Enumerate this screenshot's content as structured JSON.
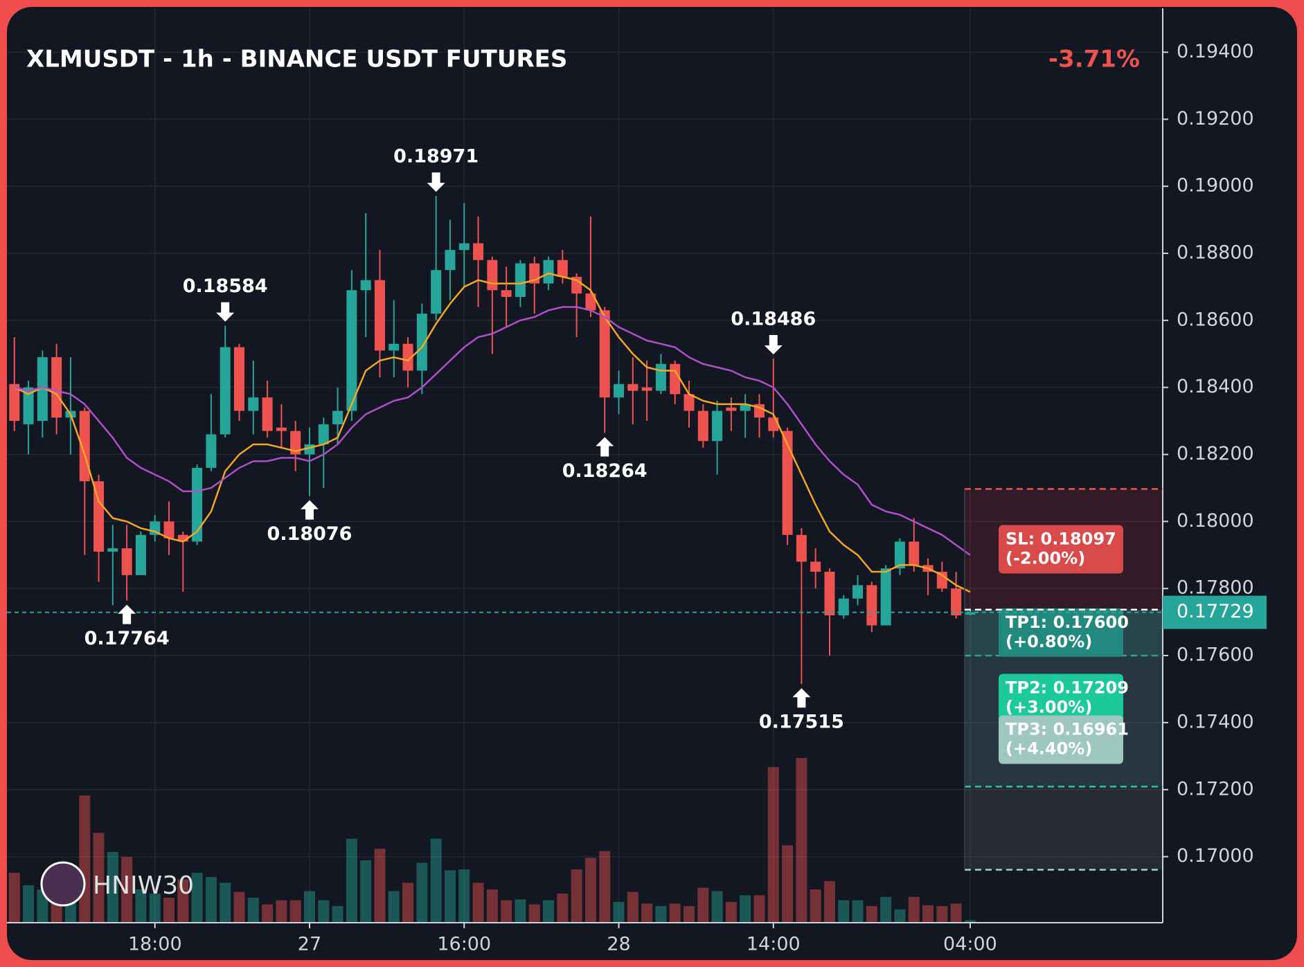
{
  "chart_data": {
    "type": "candlestick",
    "title": "XLMUSDT - 1h - BINANCE USDT FUTURES",
    "change": "-3.71%",
    "author": "HNIW30",
    "up_color": "#26a69a",
    "down_color": "#ef5350",
    "grid": true,
    "xlim": [
      -0.53,
      81.7
    ],
    "ylim": [
      0.16803,
      0.19531
    ],
    "xticks": [
      {
        "value": 10,
        "label": "18:00"
      },
      {
        "value": 21,
        "label": "27"
      },
      {
        "value": 32,
        "label": "16:00"
      },
      {
        "value": 43,
        "label": "28"
      },
      {
        "value": 54,
        "label": "14:00"
      },
      {
        "value": 68,
        "label": "04:00"
      }
    ],
    "yticks": [
      {
        "value": 0.194,
        "label": "0.19400"
      },
      {
        "value": 0.192,
        "label": "0.19200"
      },
      {
        "value": 0.19,
        "label": "0.19000"
      },
      {
        "value": 0.188,
        "label": "0.18800"
      },
      {
        "value": 0.186,
        "label": "0.18600"
      },
      {
        "value": 0.184,
        "label": "0.18400"
      },
      {
        "value": 0.182,
        "label": "0.18200"
      },
      {
        "value": 0.18,
        "label": "0.18000"
      },
      {
        "value": 0.178,
        "label": "0.17800"
      },
      {
        "value": 0.176,
        "label": "0.17600"
      },
      {
        "value": 0.174,
        "label": "0.17400"
      },
      {
        "value": 0.172,
        "label": "0.17200"
      },
      {
        "value": 0.17,
        "label": "0.17000"
      }
    ],
    "open": [
      0.1841,
      0.1829,
      0.183,
      0.1849,
      0.1831,
      0.1833,
      0.1812,
      0.1791,
      0.1792,
      0.1784,
      0.1796,
      0.18,
      0.1796,
      0.1794,
      0.1816,
      0.1826,
      0.1852,
      0.1833,
      0.1837,
      0.1828,
      0.1827,
      0.182,
      0.1823,
      0.1829,
      0.1833,
      0.1869,
      0.1872,
      0.1851,
      0.1853,
      0.1845,
      0.1862,
      0.1875,
      0.1881,
      0.1883,
      0.1878,
      0.1869,
      0.1867,
      0.1877,
      0.1871,
      0.1878,
      0.1873,
      0.1868,
      0.1863,
      0.1837,
      0.1841,
      0.184,
      0.1839,
      0.1847,
      0.1838,
      0.1833,
      0.1824,
      0.1834,
      0.1833,
      0.1835,
      0.1831,
      0.1827,
      0.1796,
      0.1788,
      0.1785,
      0.1772,
      0.1777,
      0.1781,
      0.1769,
      0.1786,
      0.1794,
      0.1787,
      0.1785,
      0.178,
      0.17722
    ],
    "high": [
      0.1855,
      0.1842,
      0.1851,
      0.1853,
      0.1849,
      0.1834,
      0.1814,
      0.1799,
      0.1799,
      0.1797,
      0.1802,
      0.1806,
      0.1797,
      0.1817,
      0.1838,
      0.18584,
      0.1853,
      0.1848,
      0.1842,
      0.1835,
      0.183,
      0.1828,
      0.1831,
      0.184,
      0.1875,
      0.1892,
      0.1881,
      0.1866,
      0.1855,
      0.1865,
      0.18971,
      0.189,
      0.1895,
      0.1891,
      0.1879,
      0.1876,
      0.1878,
      0.1879,
      0.1879,
      0.1881,
      0.1874,
      0.1891,
      0.1864,
      0.1845,
      0.1849,
      0.1848,
      0.185,
      0.1848,
      0.1842,
      0.1835,
      0.1836,
      0.1837,
      0.1838,
      0.1838,
      0.18486,
      0.1828,
      0.1798,
      0.1792,
      0.1786,
      0.1778,
      0.1784,
      0.1782,
      0.1787,
      0.1795,
      0.1801,
      0.1789,
      0.1788,
      0.1785,
      0.1774
    ],
    "low": [
      0.1827,
      0.182,
      0.1825,
      0.1826,
      0.182,
      0.179,
      0.1782,
      0.1775,
      0.17764,
      0.1784,
      0.1794,
      0.179,
      0.1779,
      0.1793,
      0.1815,
      0.1825,
      0.183,
      0.1826,
      0.1825,
      0.1822,
      0.1815,
      0.18076,
      0.181,
      0.1823,
      0.183,
      0.1855,
      0.1843,
      0.1843,
      0.184,
      0.1838,
      0.186,
      0.1866,
      0.187,
      0.1864,
      0.185,
      0.1858,
      0.1864,
      0.1862,
      0.1869,
      0.1871,
      0.1855,
      0.1861,
      0.18264,
      0.1832,
      0.1829,
      0.183,
      0.1838,
      0.1835,
      0.1828,
      0.1822,
      0.1814,
      0.1827,
      0.1825,
      0.1825,
      0.1825,
      0.1793,
      0.17515,
      0.178,
      0.176,
      0.1771,
      0.1775,
      0.1767,
      0.1769,
      0.1784,
      0.1785,
      0.1778,
      0.1779,
      0.1771,
      0.1772
    ],
    "close": [
      0.183,
      0.184,
      0.1849,
      0.1831,
      0.1833,
      0.1812,
      0.1791,
      0.1792,
      0.1784,
      0.1796,
      0.18,
      0.1795,
      0.1794,
      0.1816,
      0.1826,
      0.1852,
      0.1833,
      0.1837,
      0.1827,
      0.1827,
      0.182,
      0.1823,
      0.1829,
      0.1833,
      0.1869,
      0.1872,
      0.1851,
      0.1853,
      0.1845,
      0.1862,
      0.1875,
      0.1881,
      0.1883,
      0.1878,
      0.1869,
      0.1867,
      0.1877,
      0.1871,
      0.1878,
      0.1873,
      0.1868,
      0.1863,
      0.1837,
      0.1841,
      0.1839,
      0.1839,
      0.1847,
      0.1838,
      0.1833,
      0.1824,
      0.1833,
      0.1833,
      0.1835,
      0.1831,
      0.1827,
      0.1796,
      0.1788,
      0.1785,
      0.1772,
      0.1777,
      0.1781,
      0.1769,
      0.1786,
      0.1794,
      0.1787,
      0.1785,
      0.178,
      0.1772,
      0.17729
    ],
    "volume": [
      60,
      45,
      40,
      30,
      55,
      153,
      108,
      85,
      79,
      40,
      35,
      30,
      52,
      60,
      55,
      48,
      37,
      30,
      22,
      27,
      27,
      38,
      27,
      20,
      101,
      75,
      89,
      38,
      48,
      72,
      101,
      63,
      64,
      48,
      40,
      27,
      28,
      22,
      27,
      35,
      64,
      78,
      86,
      25,
      37,
      23,
      20,
      23,
      20,
      42,
      38,
      25,
      33,
      33,
      187,
      93,
      198,
      40,
      50,
      27,
      27,
      20,
      31,
      16,
      31,
      21,
      20,
      23,
      3
    ],
    "series": [
      {
        "color": "#f5a623",
        "values": [
          0.184,
          0.1838,
          0.184,
          0.1838,
          0.1832,
          0.182,
          0.1806,
          0.1801,
          0.18,
          0.1798,
          0.1797,
          0.1795,
          0.1794,
          0.1797,
          0.1803,
          0.1815,
          0.182,
          0.1823,
          0.1823,
          0.1822,
          0.1821,
          0.1822,
          0.1823,
          0.1825,
          0.1835,
          0.1845,
          0.1848,
          0.1849,
          0.1848,
          0.1852,
          0.1859,
          0.1865,
          0.187,
          0.1872,
          0.1871,
          0.1871,
          0.1871,
          0.1872,
          0.1874,
          0.1873,
          0.1872,
          0.1869,
          0.1861,
          0.1855,
          0.185,
          0.1846,
          0.1845,
          0.1845,
          0.1838,
          0.1836,
          0.1835,
          0.1835,
          0.1835,
          0.1834,
          0.1832,
          0.1823,
          0.1814,
          0.1805,
          0.1797,
          0.1793,
          0.179,
          0.1785,
          0.1785,
          0.1787,
          0.1787,
          0.1786,
          0.1784,
          0.1781,
          0.1779
        ]
      },
      {
        "color": "#b04fc8",
        "values": [
          0.184,
          0.1839,
          0.184,
          0.1839,
          0.1838,
          0.1835,
          0.183,
          0.1825,
          0.1819,
          0.1816,
          0.1814,
          0.1812,
          0.1809,
          0.1809,
          0.181,
          0.1813,
          0.1816,
          0.1818,
          0.1818,
          0.1819,
          0.1819,
          0.1818,
          0.182,
          0.1823,
          0.1828,
          0.1832,
          0.1834,
          0.1836,
          0.1837,
          0.184,
          0.1844,
          0.1848,
          0.1852,
          0.1855,
          0.1856,
          0.1858,
          0.186,
          0.1861,
          0.1863,
          0.1864,
          0.1864,
          0.1863,
          0.1861,
          0.1858,
          0.1856,
          0.1854,
          0.1853,
          0.1852,
          0.1849,
          0.1847,
          0.1846,
          0.1845,
          0.1843,
          0.1842,
          0.184,
          0.1835,
          0.1829,
          0.1823,
          0.1818,
          0.1814,
          0.1811,
          0.1805,
          0.1803,
          0.1802,
          0.18,
          0.1798,
          0.1796,
          0.1793,
          0.179
        ]
      }
    ],
    "annotations": [
      {
        "candle": 8,
        "kind": "low",
        "label": "0.17764"
      },
      {
        "candle": 15,
        "kind": "high",
        "label": "0.18584"
      },
      {
        "candle": 21,
        "kind": "low",
        "label": "0.18076"
      },
      {
        "candle": 30,
        "kind": "high",
        "label": "0.18971"
      },
      {
        "candle": 42,
        "kind": "low",
        "label": "0.18264"
      },
      {
        "candle": 54,
        "kind": "high",
        "label": "0.18486"
      },
      {
        "candle": 56,
        "kind": "low",
        "label": "0.17515"
      }
    ],
    "entry": {
      "value": 0.17737,
      "color": "#ffffff"
    },
    "last_price": {
      "value": 0.17729,
      "label": "0.17729",
      "color": "#26a69a"
    },
    "levels": [
      {
        "label": "SL: 0.18097",
        "pct": "(-2.00%)",
        "value": 0.18097,
        "color": "#ef5350",
        "box": "#d94a4a",
        "zone": "rgba(242,54,69,0.14)"
      },
      {
        "label": "TP1: 0.17600",
        "pct": "(+0.80%)",
        "value": 0.176,
        "color": "#26a69a",
        "box": "#22897f",
        "zone": "rgba(38,166,154,0.13)"
      },
      {
        "label": "TP2: 0.17209",
        "pct": "(+3.00%)",
        "value": 0.17209,
        "color": "#26c9a0",
        "box": "#1bc99a",
        "zone": "rgba(38,166,154,0.11)"
      },
      {
        "label": "TP3: 0.16961",
        "pct": "(+4.40%)",
        "value": 0.16961,
        "color": "#a3d2cb",
        "box": "#9ec7c0",
        "zone": "rgba(160,170,180,0.13)"
      }
    ]
  }
}
